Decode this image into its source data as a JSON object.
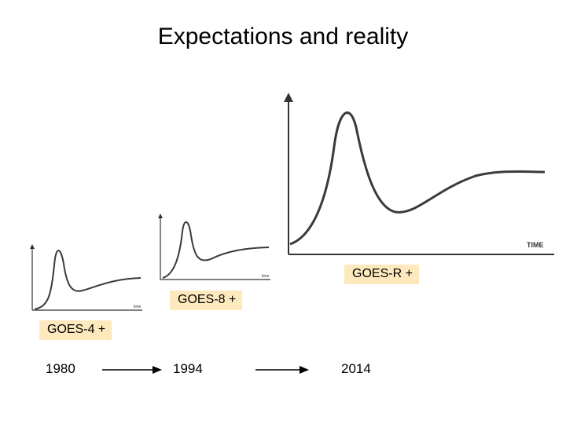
{
  "title": "Expectations and reality",
  "curves": [
    {
      "id": "small",
      "axis_label": "time"
    },
    {
      "id": "medium",
      "axis_label": "time"
    },
    {
      "id": "large",
      "axis_label": "TIME"
    }
  ],
  "labels": {
    "goes_r": "GOES-R +",
    "goes_8": "GOES-8 +",
    "goes_4": "GOES-4 +"
  },
  "timeline": {
    "years": [
      "1980",
      "1994",
      "2014"
    ]
  },
  "colors": {
    "label_bg": "#fde9bd",
    "curve": "#3a3a3a"
  }
}
